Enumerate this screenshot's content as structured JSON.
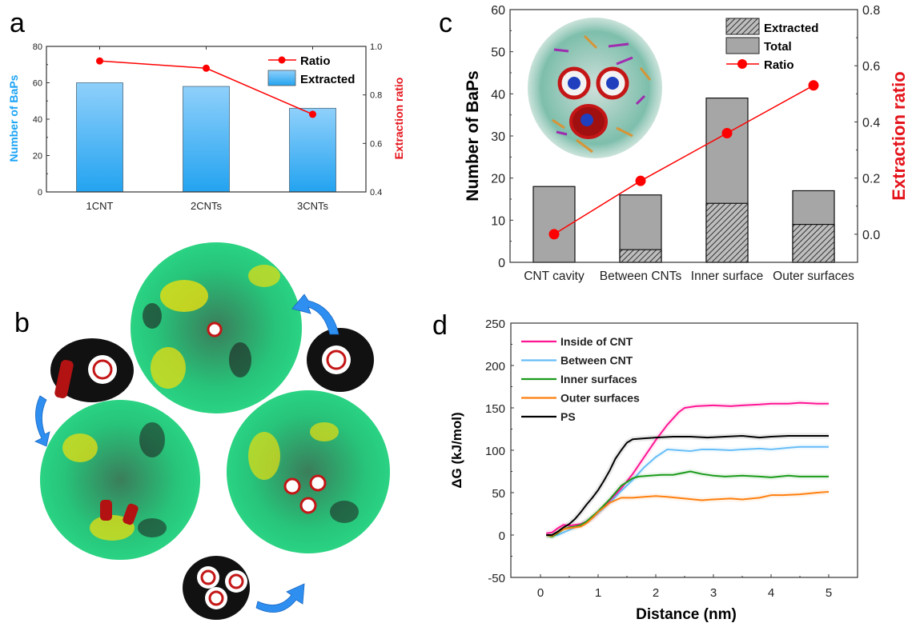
{
  "panel_labels": {
    "a": "a",
    "b": "b",
    "c": "c",
    "d": "d"
  },
  "colors": {
    "bar_blue_top": "#8fd0fb",
    "bar_blue_bottom": "#23a3f0",
    "ratio_red": "#ff0000",
    "axis_blue_label": "#1aa3f5",
    "axis_red_label": "#e4141b",
    "gray_bar": "#a6a6a6",
    "pink": "#ff1493",
    "light_blue": "#66bdf7",
    "green": "#1a9a1a",
    "orange": "#ff7f0e",
    "black": "#000000",
    "arrow_blue": "#2f8ff0",
    "sphere_green": "#27c47a",
    "sphere_yellow": "#e8de10",
    "cnt_red": "#c41616"
  },
  "panel_b": {
    "description": "Molecular snapshots: 1, 2 and 3 CNT assemblies in PS/BaP micelle",
    "arrow_count": 3
  },
  "chart_data": [
    {
      "id": "a",
      "type": "bar",
      "title": "",
      "xlabel": "",
      "ylabel": "Number of BaPs",
      "y2label": "Extraction ratio",
      "categories": [
        "1CNT",
        "2CNTs",
        "3CNTs"
      ],
      "ylim": [
        0,
        80
      ],
      "yticks": [
        0,
        20,
        40,
        60,
        80
      ],
      "y2lim": [
        0.4,
        1.0
      ],
      "y2ticks": [
        "0.4",
        "0.6",
        "0.8",
        "1.0"
      ],
      "y2tickvals": [
        0.4,
        0.6,
        0.8,
        1.0
      ],
      "series": [
        {
          "name": "Extracted",
          "kind": "bar",
          "values": [
            60,
            58,
            46
          ]
        },
        {
          "name": "Ratio",
          "kind": "line",
          "axis": "right",
          "values": [
            0.94,
            0.91,
            0.72
          ]
        }
      ],
      "legend": {
        "position": "top-right",
        "entries": [
          "Ratio",
          "Extracted"
        ]
      },
      "grid": false
    },
    {
      "id": "c",
      "type": "bar",
      "title": "",
      "xlabel": "",
      "ylabel": "Number of BaPs",
      "y2label": "Extraction ratio",
      "categories": [
        "CNT cavity",
        "Between CNTs",
        "Inner surface",
        "Outer surfaces"
      ],
      "ylim": [
        0,
        60
      ],
      "yticks": [
        0,
        10,
        20,
        30,
        40,
        50,
        60
      ],
      "y2lim": [
        -0.1,
        0.8
      ],
      "y2ticks": [
        "0.0",
        "0.2",
        "0.4",
        "0.6",
        "0.8"
      ],
      "y2tickvals": [
        0.0,
        0.2,
        0.4,
        0.6,
        0.8
      ],
      "series": [
        {
          "name": "Total",
          "kind": "bar",
          "values": [
            18,
            16,
            39,
            17
          ]
        },
        {
          "name": "Extracted",
          "kind": "bar-hatched",
          "values": [
            0,
            3,
            14,
            9
          ]
        },
        {
          "name": "Ratio",
          "kind": "line",
          "axis": "right",
          "values": [
            0.0,
            0.19,
            0.36,
            0.53
          ]
        }
      ],
      "legend": {
        "position": "top-right",
        "entries": [
          "Extracted",
          "Total",
          "Ratio"
        ]
      },
      "grid": false
    },
    {
      "id": "d",
      "type": "line",
      "title": "",
      "xlabel": "Distance (nm)",
      "ylabel": "ΔG (kJ/mol)",
      "xlim": [
        -0.5,
        5.5
      ],
      "xticks": [
        0,
        1,
        2,
        3,
        4,
        5
      ],
      "ylim": [
        -50,
        250
      ],
      "yticks": [
        -50,
        0,
        50,
        100,
        150,
        200,
        250
      ],
      "legend": {
        "position": "top-left",
        "entries": [
          "Inside of CNT",
          "Between CNT",
          "Inner surfaces",
          "Outer surfaces",
          "PS"
        ]
      },
      "grid": false,
      "series": [
        {
          "name": "Inside of CNT",
          "color": "#ff1493",
          "x": [
            0.1,
            0.2,
            0.3,
            0.4,
            0.5,
            0.6,
            0.7,
            0.8,
            0.9,
            1.0,
            1.2,
            1.4,
            1.6,
            1.8,
            2.0,
            2.2,
            2.4,
            2.5,
            2.7,
            3.0,
            3.3,
            3.5,
            3.8,
            4.0,
            4.3,
            4.5,
            4.8,
            5.0
          ],
          "y": [
            2,
            3,
            8,
            12,
            11,
            12,
            13,
            16,
            20,
            26,
            40,
            55,
            72,
            92,
            112,
            130,
            145,
            150,
            152,
            153,
            152,
            153,
            154,
            155,
            155,
            156,
            155,
            155
          ]
        },
        {
          "name": "Between CNT",
          "color": "#66bdf7",
          "x": [
            0.1,
            0.2,
            0.3,
            0.4,
            0.5,
            0.6,
            0.7,
            0.8,
            0.9,
            1.0,
            1.2,
            1.4,
            1.6,
            1.8,
            2.0,
            2.2,
            2.4,
            2.6,
            2.8,
            3.0,
            3.3,
            3.5,
            3.8,
            4.0,
            4.3,
            4.5,
            4.8,
            5.0
          ],
          "y": [
            0,
            -1,
            0,
            3,
            6,
            9,
            12,
            16,
            20,
            26,
            38,
            52,
            65,
            80,
            92,
            101,
            100,
            99,
            101,
            101,
            100,
            101,
            102,
            101,
            103,
            104,
            104,
            104
          ]
        },
        {
          "name": "Inner surfaces",
          "color": "#1a9a1a",
          "x": [
            0.1,
            0.2,
            0.3,
            0.4,
            0.5,
            0.6,
            0.7,
            0.8,
            0.9,
            1.0,
            1.2,
            1.4,
            1.6,
            1.7,
            1.9,
            2.1,
            2.3,
            2.6,
            2.8,
            3.0,
            3.2,
            3.5,
            3.8,
            4.0,
            4.3,
            4.5,
            4.8,
            5.0
          ],
          "y": [
            0,
            -2,
            2,
            7,
            9,
            10,
            12,
            16,
            22,
            28,
            42,
            58,
            67,
            69,
            70,
            71,
            71,
            75,
            72,
            70,
            69,
            70,
            69,
            68,
            70,
            69,
            69,
            69
          ]
        },
        {
          "name": "Outer surfaces",
          "color": "#ff7f0e",
          "x": [
            0.1,
            0.2,
            0.3,
            0.4,
            0.5,
            0.6,
            0.7,
            0.8,
            0.9,
            1.0,
            1.2,
            1.4,
            1.6,
            1.8,
            2.0,
            2.2,
            2.5,
            2.8,
            3.0,
            3.3,
            3.5,
            3.8,
            4.0,
            4.2,
            4.5,
            4.8,
            5.0
          ],
          "y": [
            0,
            -1,
            3,
            7,
            8,
            9,
            10,
            14,
            20,
            27,
            38,
            44,
            44,
            45,
            46,
            45,
            43,
            41,
            42,
            43,
            42,
            44,
            47,
            47,
            48,
            50,
            51
          ]
        },
        {
          "name": "PS",
          "color": "#000000",
          "x": [
            0.1,
            0.2,
            0.3,
            0.4,
            0.5,
            0.6,
            0.7,
            0.8,
            0.9,
            1.0,
            1.1,
            1.2,
            1.3,
            1.4,
            1.5,
            1.6,
            1.8,
            2.0,
            2.3,
            2.6,
            2.9,
            3.2,
            3.5,
            3.8,
            4.0,
            4.3,
            4.6,
            5.0
          ],
          "y": [
            0,
            0,
            4,
            9,
            13,
            19,
            27,
            36,
            44,
            53,
            64,
            76,
            90,
            100,
            109,
            113,
            114,
            115,
            116,
            116,
            115,
            116,
            117,
            115,
            116,
            117,
            117,
            117
          ]
        }
      ]
    }
  ]
}
